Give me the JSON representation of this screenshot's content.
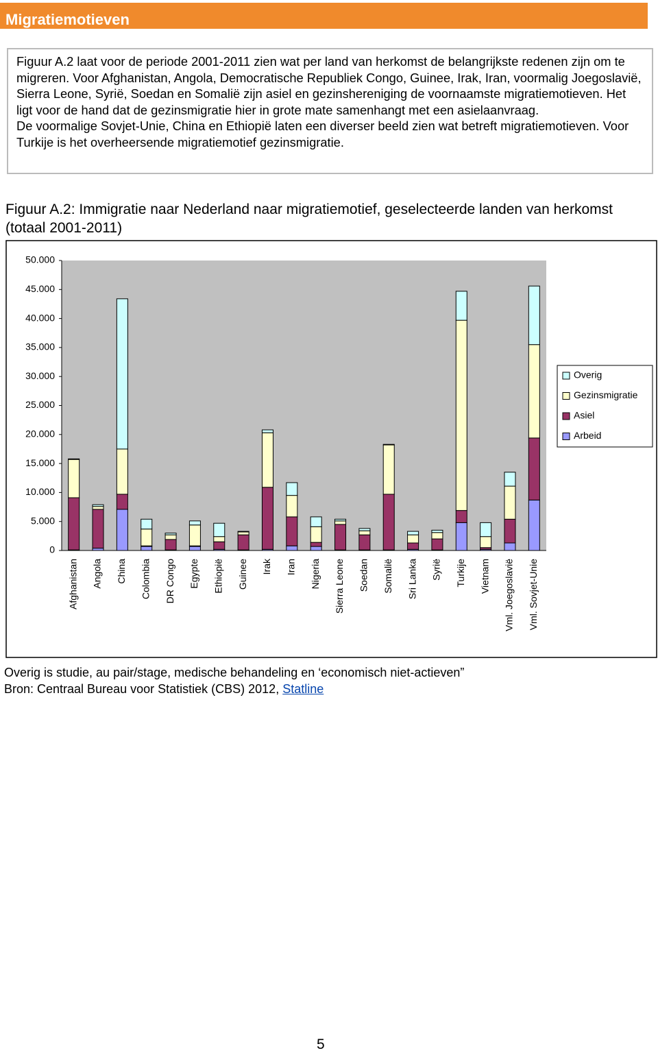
{
  "header": {
    "title": "Migratiemotieven"
  },
  "intro": {
    "paragraphs": [
      "Figuur A.2 laat voor de periode 2001-2011 zien wat per land van herkomst de belangrijkste redenen zijn om te migreren. Voor Afghanistan, Angola, Democratische Republiek Congo, Guinee, Irak, Iran, voormalig Joegoslavië, Sierra Leone, Syrië, Soedan en Somalië zijn asiel en gezinshereniging de voornaamste migratiemotieven. Het ligt voor de hand dat de gezinsmigratie hier in grote mate samenhangt met een asielaanvraag.",
      "De voormalige Sovjet-Unie, China en Ethiopië laten een diverser beeld zien wat betreft migratiemotieven. Voor Turkije is het overheersende migratiemotief gezinsmigratie."
    ]
  },
  "figure_title": "Figuur A.2: Immigratie naar Nederland naar migratiemotief, geselecteerde landen van herkomst (totaal 2001-2011)",
  "chart_data": {
    "type": "bar",
    "stacked": true,
    "categories": [
      "Afghanistan",
      "Angola",
      "China",
      "Colombia",
      "DR Congo",
      "Egypte",
      "Ethiopië",
      "Guinee",
      "Irak",
      "Iran",
      "Nigeria",
      "Sierra Leone",
      "Soedan",
      "Somalië",
      "Sri Lanka",
      "Syrië",
      "Turkije",
      "Vietnam",
      "Vml. Joegoslavië",
      "Vml. Sovjet-Unie"
    ],
    "series": [
      {
        "name": "Arbeid",
        "color": "#9999ff",
        "values": [
          100,
          400,
          7100,
          700,
          100,
          700,
          200,
          100,
          200,
          800,
          700,
          100,
          100,
          100,
          200,
          100,
          4800,
          200,
          1300,
          8700
        ]
      },
      {
        "name": "Asiel",
        "color": "#993366",
        "values": [
          9000,
          6700,
          2600,
          100,
          1800,
          100,
          1300,
          2600,
          10700,
          5000,
          700,
          4400,
          2600,
          9600,
          1100,
          1900,
          2100,
          300,
          4100,
          10700
        ]
      },
      {
        "name": "Gezinsmigratie",
        "color": "#ffffcc",
        "values": [
          6600,
          500,
          7800,
          2900,
          800,
          3600,
          900,
          500,
          9400,
          3700,
          2700,
          600,
          700,
          8500,
          1400,
          1100,
          32800,
          1900,
          5700,
          16100
        ]
      },
      {
        "name": "Overig",
        "color": "#ccffff",
        "values": [
          100,
          300,
          25900,
          1700,
          300,
          700,
          2300,
          100,
          500,
          2200,
          1700,
          300,
          400,
          100,
          600,
          400,
          5000,
          2400,
          2400,
          10100
        ]
      }
    ],
    "ylim": [
      0,
      50000
    ],
    "yticks": [
      0,
      {
        "value": 5000,
        "label": "5.000"
      },
      {
        "value": 10000,
        "label": "10.000"
      },
      {
        "value": 15000,
        "label": "15.000"
      },
      {
        "value": 20000,
        "label": "20.000"
      },
      {
        "value": 25000,
        "label": "25.000"
      },
      {
        "value": 30000,
        "label": "30.000"
      },
      {
        "value": 35000,
        "label": "35.000"
      },
      {
        "value": 40000,
        "label": "40.000"
      },
      {
        "value": 45000,
        "label": "45.000"
      },
      {
        "value": 50000,
        "label": "50.000"
      }
    ],
    "legend": "right",
    "grid": false,
    "background": "#c0c0c0"
  },
  "notes": {
    "overig": "Overig is studie, au pair/stage, medische behandeling en ‘economisch niet-actieven”",
    "source": "Bron: Centraal Bureau voor Statistiek (CBS) 2012,",
    "source_link": "Statline"
  },
  "page_number": "5"
}
